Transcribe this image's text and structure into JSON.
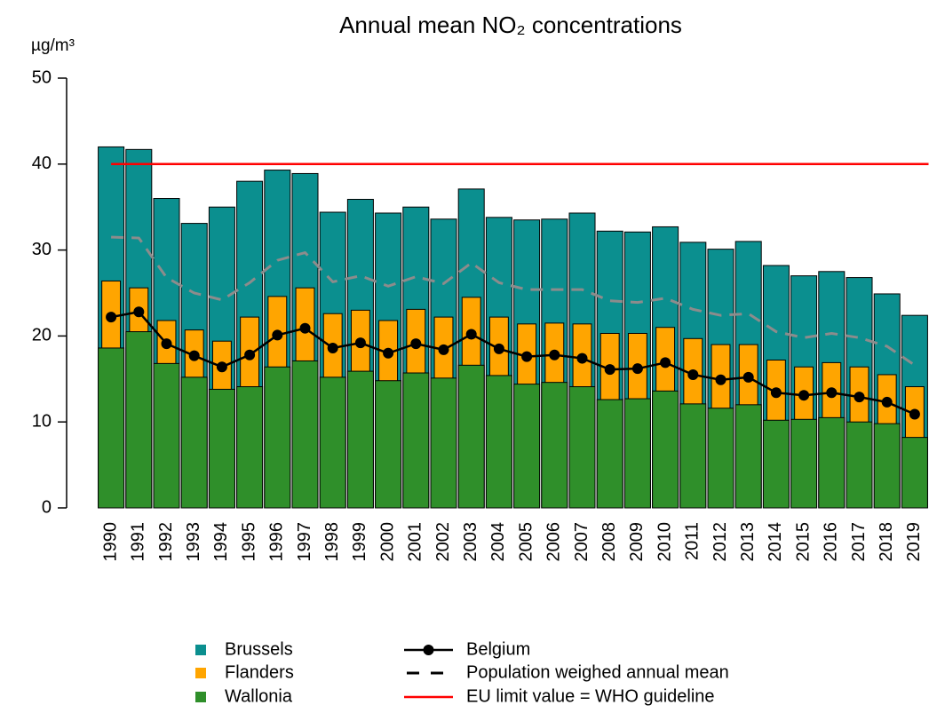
{
  "chart_data": {
    "type": "bar",
    "title": "Annual mean NO₂ concentrations",
    "y_label": "µg/m³",
    "ylim": [
      0,
      50
    ],
    "yticks": [
      0,
      10,
      20,
      30,
      40,
      50
    ],
    "categories": [
      "1990",
      "1991",
      "1992",
      "1993",
      "1994",
      "1995",
      "1996",
      "1997",
      "1998",
      "1999",
      "2000",
      "2001",
      "2002",
      "2003",
      "2004",
      "2005",
      "2006",
      "2007",
      "2008",
      "2009",
      "2010",
      "2011",
      "2012",
      "2013",
      "2014",
      "2015",
      "2016",
      "2017",
      "2018",
      "2019"
    ],
    "series": [
      {
        "name": "Brussels",
        "style": "bar",
        "color": "#0b8f8f",
        "values": [
          42.0,
          41.7,
          36.0,
          33.1,
          35.0,
          38.0,
          39.3,
          38.9,
          34.4,
          35.9,
          34.3,
          35.0,
          33.6,
          37.1,
          33.8,
          33.5,
          33.6,
          34.3,
          32.2,
          32.1,
          32.7,
          30.9,
          30.1,
          31.0,
          28.2,
          27.0,
          27.5,
          26.8,
          24.9,
          22.4
        ]
      },
      {
        "name": "Flanders",
        "style": "bar",
        "color": "#ffa500",
        "values": [
          26.4,
          25.6,
          21.8,
          20.7,
          19.4,
          22.2,
          24.6,
          25.6,
          22.6,
          23.0,
          21.8,
          23.1,
          22.2,
          24.5,
          22.2,
          21.4,
          21.5,
          21.4,
          20.3,
          20.3,
          21.0,
          19.7,
          19.0,
          19.0,
          17.2,
          16.4,
          16.9,
          16.4,
          15.5,
          14.1
        ]
      },
      {
        "name": "Wallonia",
        "style": "bar",
        "color": "#2f8f2a",
        "values": [
          18.6,
          20.5,
          16.8,
          15.2,
          13.8,
          14.1,
          16.4,
          17.1,
          15.2,
          15.9,
          14.8,
          15.7,
          15.1,
          16.6,
          15.4,
          14.4,
          14.6,
          14.1,
          12.6,
          12.7,
          13.6,
          12.1,
          11.6,
          12.0,
          10.2,
          10.3,
          10.5,
          10.0,
          9.8,
          8.2
        ]
      },
      {
        "name": "Belgium",
        "style": "line",
        "color": "#000000",
        "values": [
          22.2,
          22.8,
          19.1,
          17.7,
          16.4,
          17.8,
          20.1,
          20.9,
          18.6,
          19.2,
          18.0,
          19.1,
          18.4,
          20.2,
          18.5,
          17.6,
          17.8,
          17.4,
          16.1,
          16.2,
          16.9,
          15.5,
          14.9,
          15.2,
          13.4,
          13.1,
          13.4,
          12.9,
          12.3,
          10.9
        ]
      },
      {
        "name": "Population weighed annual mean",
        "style": "dashed",
        "color": "#8c8c8c",
        "values": [
          31.5,
          31.4,
          26.8,
          25.0,
          24.2,
          26.2,
          28.8,
          29.7,
          26.3,
          27.0,
          25.8,
          26.9,
          26.1,
          28.5,
          26.2,
          25.4,
          25.4,
          25.4,
          24.1,
          23.9,
          24.4,
          23.1,
          22.4,
          22.6,
          20.5,
          19.8,
          20.3,
          19.8,
          18.8,
          16.6
        ]
      }
    ],
    "reference_line": {
      "name": "EU limit value = WHO guideline",
      "value": 40,
      "color": "#ff0000"
    }
  }
}
